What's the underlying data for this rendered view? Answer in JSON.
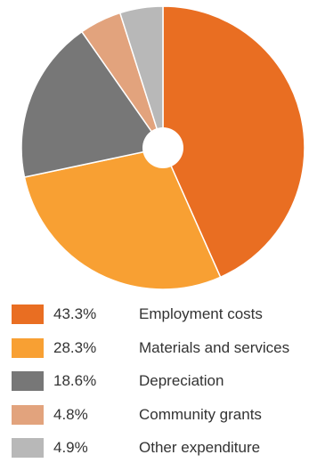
{
  "chart_data": {
    "type": "pie",
    "donut_hole": true,
    "legend_position": "bottom",
    "slices": [
      {
        "percent_label": "43.3%",
        "label": "Employment costs",
        "value": 43.3,
        "color": "#e96e22"
      },
      {
        "percent_label": "28.3%",
        "label": "Materials and services",
        "value": 28.3,
        "color": "#f8a033"
      },
      {
        "percent_label": "18.6%",
        "label": "Depreciation",
        "value": 18.6,
        "color": "#777777"
      },
      {
        "percent_label": "4.8%",
        "label": "Community grants",
        "value": 4.8,
        "color": "#e2a37d"
      },
      {
        "percent_label": "4.9%",
        "label": "Other expenditure",
        "value": 4.9,
        "color": "#b8b8b8"
      }
    ]
  }
}
